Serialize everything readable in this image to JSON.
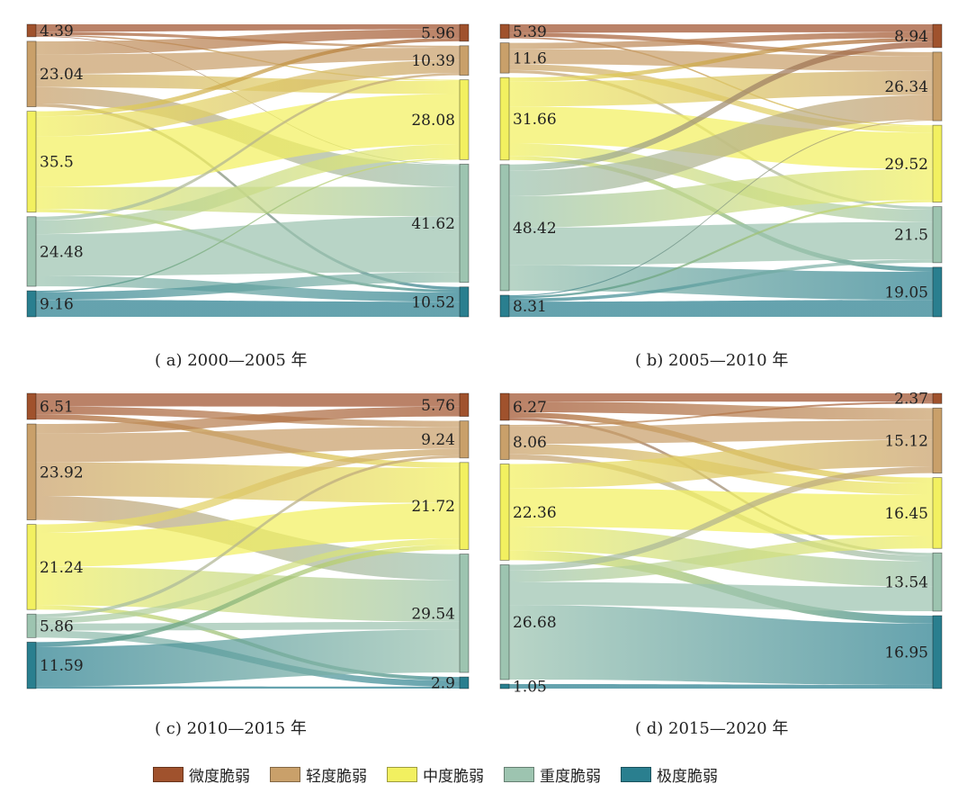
{
  "legend": {
    "items": [
      {
        "label": "微度脆弱",
        "color": "#a0522d"
      },
      {
        "label": "轻度脆弱",
        "color": "#c9a06a"
      },
      {
        "label": "中度脆弱",
        "color": "#f2f060"
      },
      {
        "label": "重度脆弱",
        "color": "#9dc4b0"
      },
      {
        "label": "极度脆弱",
        "color": "#2a7f8f"
      }
    ]
  },
  "chart_data": [
    {
      "type": "sankey",
      "caption": "( a) 2000—2005 年",
      "categories": [
        "微度脆弱",
        "轻度脆弱",
        "中度脆弱",
        "重度脆弱",
        "极度脆弱"
      ],
      "left_values": [
        4.39,
        23.04,
        35.5,
        24.48,
        9.16
      ],
      "right_values": [
        5.96,
        10.39,
        28.08,
        41.62,
        10.52
      ],
      "left_labels": [
        "4.39",
        "23.04",
        "35.5",
        "24.48",
        "9.16"
      ],
      "right_labels": [
        "5.96",
        "10.39",
        "28.08",
        "41.62",
        "10.52"
      ]
    },
    {
      "type": "sankey",
      "caption": "( b) 2005—2010 年",
      "categories": [
        "微度脆弱",
        "轻度脆弱",
        "中度脆弱",
        "重度脆弱",
        "极度脆弱"
      ],
      "left_values": [
        5.39,
        11.6,
        31.66,
        48.42,
        8.31
      ],
      "right_values": [
        8.94,
        26.34,
        29.52,
        21.5,
        19.05
      ],
      "left_labels": [
        "5.39",
        "11.6",
        "31.66",
        "48.42",
        "8.31"
      ],
      "right_labels": [
        "8.94",
        "26.34",
        "29.52",
        "21.5",
        "19.05"
      ]
    },
    {
      "type": "sankey",
      "caption": "( c) 2010—2015 年",
      "categories": [
        "微度脆弱",
        "轻度脆弱",
        "中度脆弱",
        "重度脆弱",
        "极度脆弱"
      ],
      "left_values": [
        6.51,
        23.92,
        21.24,
        5.86,
        11.59
      ],
      "right_values": [
        5.76,
        9.24,
        21.72,
        29.54,
        2.9
      ],
      "left_labels": [
        "6.51",
        "23.92",
        "21.24",
        "5.86",
        "11.59"
      ],
      "right_labels": [
        "5.76",
        "9.24",
        "21.72",
        "29.54",
        "2.9"
      ]
    },
    {
      "type": "sankey",
      "caption": "( d) 2015—2020 年",
      "categories": [
        "微度脆弱",
        "轻度脆弱",
        "中度脆弱",
        "重度脆弱",
        "极度脆弱"
      ],
      "left_values": [
        6.27,
        8.06,
        22.36,
        26.68,
        1.05
      ],
      "right_values": [
        2.37,
        15.12,
        16.45,
        13.54,
        16.95
      ],
      "left_labels": [
        "6.27",
        "8.06",
        "22.36",
        "26.68",
        "1.05"
      ],
      "right_labels": [
        "2.37",
        "15.12",
        "16.45",
        "13.54",
        "16.95"
      ]
    }
  ]
}
